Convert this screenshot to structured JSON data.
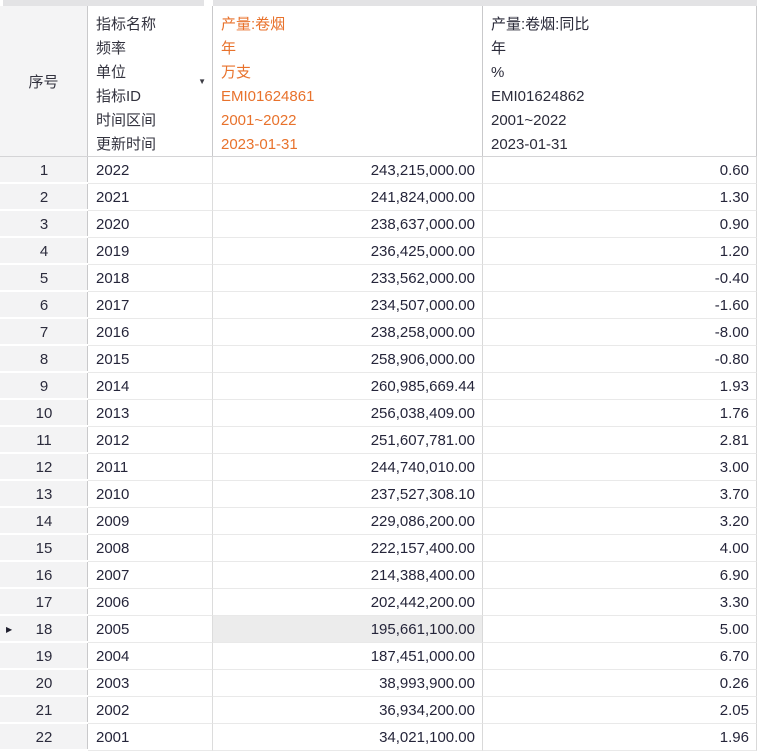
{
  "colors": {
    "accent_orange": "#E8722C",
    "text_dark": "#25253A",
    "row_header_bg": "#F3F3F4",
    "selected_cell_bg": "#ECECEC"
  },
  "header": {
    "index_label": "序号",
    "field_labels": [
      "指标名称",
      "频率",
      "单位",
      "指标ID",
      "时间区间",
      "更新时间"
    ],
    "series": [
      {
        "name": "产量:卷烟",
        "frequency": "年",
        "unit": "万支",
        "indicator_id": "EMI01624861",
        "time_range": "2001~2022",
        "update_time": "2023-01-31",
        "highlighted": true
      },
      {
        "name": "产量:卷烟:同比",
        "frequency": "年",
        "unit": "%",
        "indicator_id": "EMI01624862",
        "time_range": "2001~2022",
        "update_time": "2023-01-31",
        "highlighted": false
      }
    ]
  },
  "table": {
    "selected": {
      "row_no": "18",
      "column": "production"
    },
    "rows": [
      {
        "no": "1",
        "year": "2022",
        "production": "243,215,000.00",
        "yoy": "0.60"
      },
      {
        "no": "2",
        "year": "2021",
        "production": "241,824,000.00",
        "yoy": "1.30"
      },
      {
        "no": "3",
        "year": "2020",
        "production": "238,637,000.00",
        "yoy": "0.90"
      },
      {
        "no": "4",
        "year": "2019",
        "production": "236,425,000.00",
        "yoy": "1.20"
      },
      {
        "no": "5",
        "year": "2018",
        "production": "233,562,000.00",
        "yoy": "-0.40"
      },
      {
        "no": "6",
        "year": "2017",
        "production": "234,507,000.00",
        "yoy": "-1.60"
      },
      {
        "no": "7",
        "year": "2016",
        "production": "238,258,000.00",
        "yoy": "-8.00"
      },
      {
        "no": "8",
        "year": "2015",
        "production": "258,906,000.00",
        "yoy": "-0.80"
      },
      {
        "no": "9",
        "year": "2014",
        "production": "260,985,669.44",
        "yoy": "1.93"
      },
      {
        "no": "10",
        "year": "2013",
        "production": "256,038,409.00",
        "yoy": "1.76"
      },
      {
        "no": "11",
        "year": "2012",
        "production": "251,607,781.00",
        "yoy": "2.81"
      },
      {
        "no": "12",
        "year": "2011",
        "production": "244,740,010.00",
        "yoy": "3.00"
      },
      {
        "no": "13",
        "year": "2010",
        "production": "237,527,308.10",
        "yoy": "3.70"
      },
      {
        "no": "14",
        "year": "2009",
        "production": "229,086,200.00",
        "yoy": "3.20"
      },
      {
        "no": "15",
        "year": "2008",
        "production": "222,157,400.00",
        "yoy": "4.00"
      },
      {
        "no": "16",
        "year": "2007",
        "production": "214,388,400.00",
        "yoy": "6.90"
      },
      {
        "no": "17",
        "year": "2006",
        "production": "202,442,200.00",
        "yoy": "3.30"
      },
      {
        "no": "18",
        "year": "2005",
        "production": "195,661,100.00",
        "yoy": "5.00"
      },
      {
        "no": "19",
        "year": "2004",
        "production": "187,451,000.00",
        "yoy": "6.70"
      },
      {
        "no": "20",
        "year": "2003",
        "production": "38,993,900.00",
        "yoy": "0.26"
      },
      {
        "no": "21",
        "year": "2002",
        "production": "36,934,200.00",
        "yoy": "2.05"
      },
      {
        "no": "22",
        "year": "2001",
        "production": "34,021,100.00",
        "yoy": "1.96"
      }
    ]
  }
}
